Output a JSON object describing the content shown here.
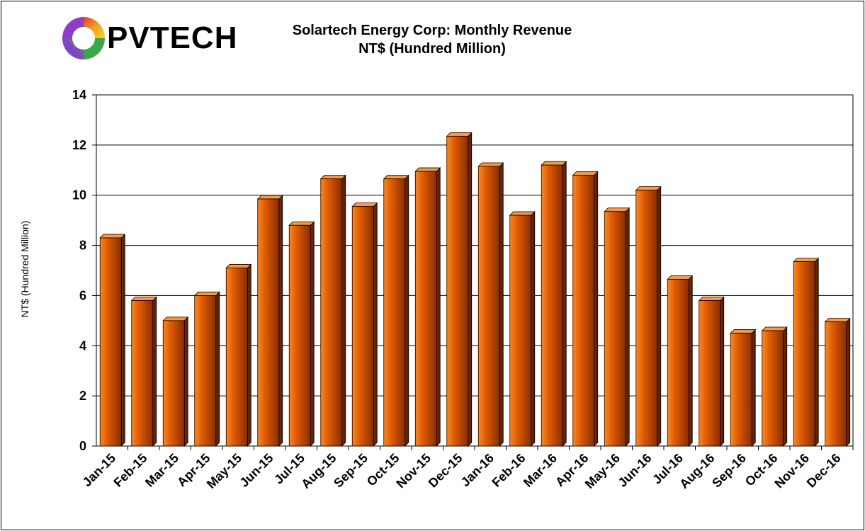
{
  "logo": {
    "text": "PVTECH"
  },
  "chart_data": {
    "type": "bar",
    "title": "Solartech Energy Corp: Monthly Revenue",
    "subtitle": "NT$ (Hundred Million)",
    "xlabel": "",
    "ylabel": "NT$ (Hundred Million)",
    "ylim": [
      0,
      14
    ],
    "yticks": [
      0,
      2,
      4,
      6,
      8,
      10,
      12,
      14
    ],
    "grid": true,
    "legend": "none",
    "bar_color": "#e05a00",
    "categories": [
      "Jan-15",
      "Feb-15",
      "Mar-15",
      "Apr-15",
      "May-15",
      "Jun-15",
      "Jul-15",
      "Aug-15",
      "Sep-15",
      "Oct-15",
      "Nov-15",
      "Dec-15",
      "Jan-16",
      "Feb-16",
      "Mar-16",
      "Apr-16",
      "May-16",
      "Jun-16",
      "Jul-16",
      "Aug-16",
      "Sep-16",
      "Oct-16",
      "Nov-16",
      "Dec-16"
    ],
    "values": [
      8.3,
      5.8,
      5.0,
      6.0,
      7.1,
      9.85,
      8.8,
      10.65,
      9.55,
      10.65,
      10.95,
      12.35,
      11.15,
      9.2,
      11.2,
      10.8,
      9.35,
      10.2,
      6.65,
      5.8,
      4.5,
      4.6,
      7.35,
      4.95
    ]
  }
}
